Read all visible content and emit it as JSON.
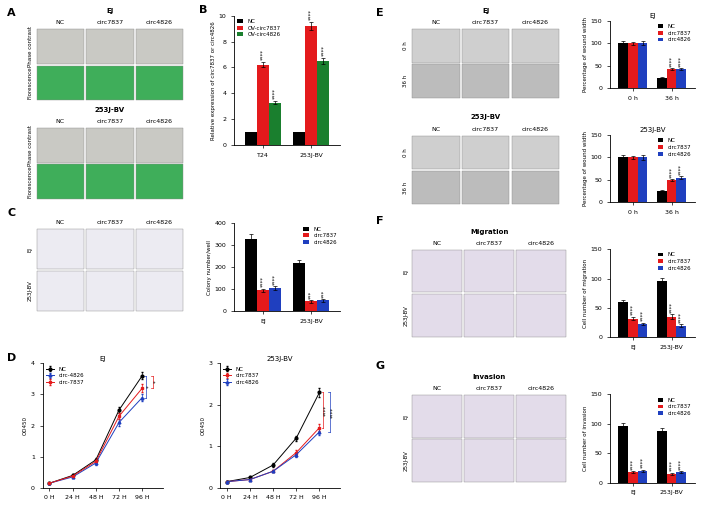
{
  "chart_data": [
    {
      "panel": "B",
      "type": "bar",
      "categories": [
        "T24",
        "253J-BV"
      ],
      "ylabel": "Relative expression of circ7837 or circ4826",
      "ylim": [
        0,
        10
      ],
      "yticks": [
        0,
        2,
        4,
        6,
        8,
        10
      ],
      "legend": "upper left",
      "series": [
        {
          "name": "NC",
          "color": "#000000",
          "values": [
            1,
            1
          ],
          "errors": [
            0.05,
            0.05
          ],
          "significance": [
            null,
            null
          ]
        },
        {
          "name": "OV-circ7837",
          "color": "#e41a1c",
          "values": [
            6.2,
            9.2
          ],
          "errors": [
            0.2,
            0.3
          ],
          "significance": [
            "****",
            "****"
          ]
        },
        {
          "name": "OV-circ4826",
          "color": "#1a7f2e",
          "values": [
            3.3,
            6.5
          ],
          "errors": [
            0.15,
            0.2
          ],
          "significance": [
            "****",
            "****"
          ]
        }
      ]
    },
    {
      "type": "bar",
      "categories": [
        "EJ",
        "253J-BV"
      ],
      "ylabel": "Colony number/well",
      "ylim": [
        0,
        400
      ],
      "yticks": [
        0,
        100,
        200,
        300,
        400
      ],
      "legend": "upper right",
      "series": [
        {
          "name": "NC",
          "color": "#000000",
          "values": [
            330,
            220
          ],
          "errors": [
            20,
            15
          ],
          "significance": [
            null,
            null
          ]
        },
        {
          "name": "circ7837",
          "color": "#e41a1c",
          "values": [
            95,
            45
          ],
          "errors": [
            8,
            5
          ],
          "significance": [
            "****",
            "***"
          ]
        },
        {
          "name": "circ4826",
          "color": "#1f3fbf",
          "values": [
            105,
            50
          ],
          "errors": [
            10,
            6
          ],
          "significance": [
            "****",
            "***"
          ]
        }
      ]
    },
    {
      "panel": "D",
      "type": "line",
      "title": "EJ",
      "categories": [
        "0 H",
        "24 H",
        "48 H",
        "72 H",
        "96 H"
      ],
      "ylabel": "OD450",
      "ylim": [
        0,
        4
      ],
      "yticks": [
        0,
        1,
        2,
        3,
        4
      ],
      "legend": "upper left",
      "series": [
        {
          "name": "NC",
          "color": "#000000",
          "marker": "circle",
          "values": [
            0.15,
            0.4,
            0.9,
            2.5,
            3.6
          ],
          "errors": [
            0.02,
            0.03,
            0.05,
            0.1,
            0.12
          ],
          "significance": [
            null,
            null,
            null,
            null,
            null
          ]
        },
        {
          "name": "circ-4826",
          "color": "#1f3fbf",
          "marker": "triangle",
          "values": [
            0.15,
            0.35,
            0.8,
            2.1,
            2.9
          ],
          "errors": [
            0.02,
            0.03,
            0.05,
            0.1,
            0.12
          ],
          "significance": [
            null,
            null,
            null,
            null,
            "*"
          ]
        },
        {
          "name": "circ-7837",
          "color": "#e41a1c",
          "marker": "square",
          "values": [
            0.15,
            0.38,
            0.85,
            2.3,
            3.2
          ],
          "errors": [
            0.02,
            0.03,
            0.05,
            0.1,
            0.12
          ],
          "significance": [
            null,
            null,
            null,
            null,
            "*"
          ]
        }
      ]
    },
    {
      "type": "line",
      "title": "253J-BV",
      "categories": [
        "0 H",
        "24 H",
        "48 H",
        "72 H",
        "96 H"
      ],
      "ylabel": "OD450",
      "ylim": [
        0,
        3
      ],
      "yticks": [
        0,
        1,
        2,
        3
      ],
      "legend": "upper left",
      "series": [
        {
          "name": "NC",
          "color": "#000000",
          "marker": "circle",
          "values": [
            0.15,
            0.25,
            0.55,
            1.2,
            2.3
          ],
          "errors": [
            0.02,
            0.02,
            0.04,
            0.06,
            0.1
          ],
          "significance": [
            null,
            null,
            null,
            null,
            null
          ]
        },
        {
          "name": "circ7837",
          "color": "#e41a1c",
          "marker": "square",
          "values": [
            0.15,
            0.2,
            0.4,
            0.85,
            1.45
          ],
          "errors": [
            0.02,
            0.02,
            0.03,
            0.05,
            0.08
          ],
          "significance": [
            null,
            null,
            null,
            null,
            "****"
          ]
        },
        {
          "name": "circ4826",
          "color": "#1f3fbf",
          "marker": "triangle",
          "values": [
            0.15,
            0.2,
            0.4,
            0.8,
            1.35
          ],
          "errors": [
            0.02,
            0.02,
            0.03,
            0.05,
            0.08
          ],
          "significance": [
            null,
            null,
            null,
            null,
            "****"
          ]
        }
      ]
    },
    {
      "type": "bar",
      "title": "EJ",
      "categories": [
        "0 h",
        "36 h"
      ],
      "ylabel": "Percentage of wound width",
      "ylim": [
        0,
        150
      ],
      "yticks": [
        0,
        50,
        100,
        150
      ],
      "legend": "upper right",
      "series": [
        {
          "name": "NC",
          "color": "#000000",
          "values": [
            100,
            22
          ],
          "errors": [
            4,
            3
          ],
          "significance": [
            null,
            null
          ]
        },
        {
          "name": "circ7837",
          "color": "#e41a1c",
          "values": [
            100,
            42
          ],
          "errors": [
            3,
            2
          ],
          "significance": [
            null,
            "****"
          ]
        },
        {
          "name": "circ4826",
          "color": "#1f3fbf",
          "values": [
            100,
            43
          ],
          "errors": [
            5,
            2
          ],
          "significance": [
            null,
            "****"
          ]
        }
      ]
    },
    {
      "type": "bar",
      "title": "253J-BV",
      "categories": [
        "0 h",
        "36 h"
      ],
      "ylabel": "Percentage of wound width",
      "ylim": [
        0,
        150
      ],
      "yticks": [
        0,
        50,
        100,
        150
      ],
      "legend": "upper right",
      "series": [
        {
          "name": "NC",
          "color": "#000000",
          "values": [
            100,
            25
          ],
          "errors": [
            5,
            3
          ],
          "significance": [
            null,
            null
          ]
        },
        {
          "name": "circ7837",
          "color": "#e41a1c",
          "values": [
            100,
            50
          ],
          "errors": [
            4,
            3
          ],
          "significance": [
            null,
            "****"
          ]
        },
        {
          "name": "circ4826",
          "color": "#1f3fbf",
          "values": [
            100,
            55
          ],
          "errors": [
            5,
            3
          ],
          "significance": [
            null,
            "****"
          ]
        }
      ]
    },
    {
      "type": "bar",
      "categories": [
        "EJ",
        "253J-BV"
      ],
      "ylabel": "Cell number of migration",
      "ylim": [
        0,
        150
      ],
      "yticks": [
        0,
        50,
        100,
        150
      ],
      "legend": "upper right",
      "series": [
        {
          "name": "NC",
          "color": "#000000",
          "values": [
            60,
            95
          ],
          "errors": [
            4,
            6
          ],
          "significance": [
            null,
            null
          ]
        },
        {
          "name": "circ7837",
          "color": "#e41a1c",
          "values": [
            32,
            35
          ],
          "errors": [
            3,
            4
          ],
          "significance": [
            "****",
            "****"
          ]
        },
        {
          "name": "circ4826",
          "color": "#1f3fbf",
          "values": [
            23,
            20
          ],
          "errors": [
            2,
            2
          ],
          "significance": [
            "****",
            "****"
          ]
        }
      ]
    },
    {
      "type": "bar",
      "categories": [
        "EJ",
        "253J-BV"
      ],
      "ylabel": "Cell number of invasion",
      "ylim": [
        0,
        150
      ],
      "yticks": [
        0,
        50,
        100,
        150
      ],
      "legend": "upper right",
      "series": [
        {
          "name": "NC",
          "color": "#000000",
          "values": [
            97,
            88
          ],
          "errors": [
            4,
            5
          ],
          "significance": [
            null,
            null
          ]
        },
        {
          "name": "circ7837",
          "color": "#e41a1c",
          "values": [
            18,
            15
          ],
          "errors": [
            2,
            2
          ],
          "significance": [
            "****",
            "****"
          ]
        },
        {
          "name": "circ4826",
          "color": "#1f3fbf",
          "values": [
            20,
            18
          ],
          "errors": [
            2,
            2
          ],
          "significance": [
            "****",
            "****"
          ]
        }
      ]
    }
  ],
  "image_panels": [
    {
      "panel": "A",
      "groups": [
        {
          "title": "EJ",
          "columns": [
            "NC",
            "circ7837",
            "circ4826"
          ],
          "rows": [
            "Phase contrast",
            "Florescence"
          ]
        },
        {
          "title": "253J-BV",
          "columns": [
            "NC",
            "circ7837",
            "circ4826"
          ],
          "rows": [
            "Phase contrast",
            "Florescence"
          ]
        }
      ]
    },
    {
      "panel": "C",
      "groups": [
        {
          "columns": [
            "NC",
            "circ7837",
            "circ4826"
          ],
          "rows": [
            "EJ",
            "253J-BV"
          ]
        }
      ]
    },
    {
      "panel": "E",
      "groups": [
        {
          "title": "EJ",
          "columns": [
            "NC",
            "circ7837",
            "circ4826"
          ],
          "rows": [
            "0 h",
            "36 h"
          ]
        },
        {
          "title": "253J-BV",
          "columns": [
            "NC",
            "circ7837",
            "circ4826"
          ],
          "rows": [
            "0 h",
            "36 h"
          ]
        }
      ]
    },
    {
      "panel": "F",
      "groups": [
        {
          "title": "Migration",
          "columns": [
            "NC",
            "circ7837",
            "circ4826"
          ],
          "rows": [
            "EJ",
            "253J-BV"
          ]
        }
      ]
    },
    {
      "panel": "G",
      "groups": [
        {
          "title": "Invasion",
          "columns": [
            "NC",
            "circ7837",
            "circ4826"
          ],
          "rows": [
            "EJ",
            "253J-BV"
          ]
        }
      ]
    }
  ]
}
